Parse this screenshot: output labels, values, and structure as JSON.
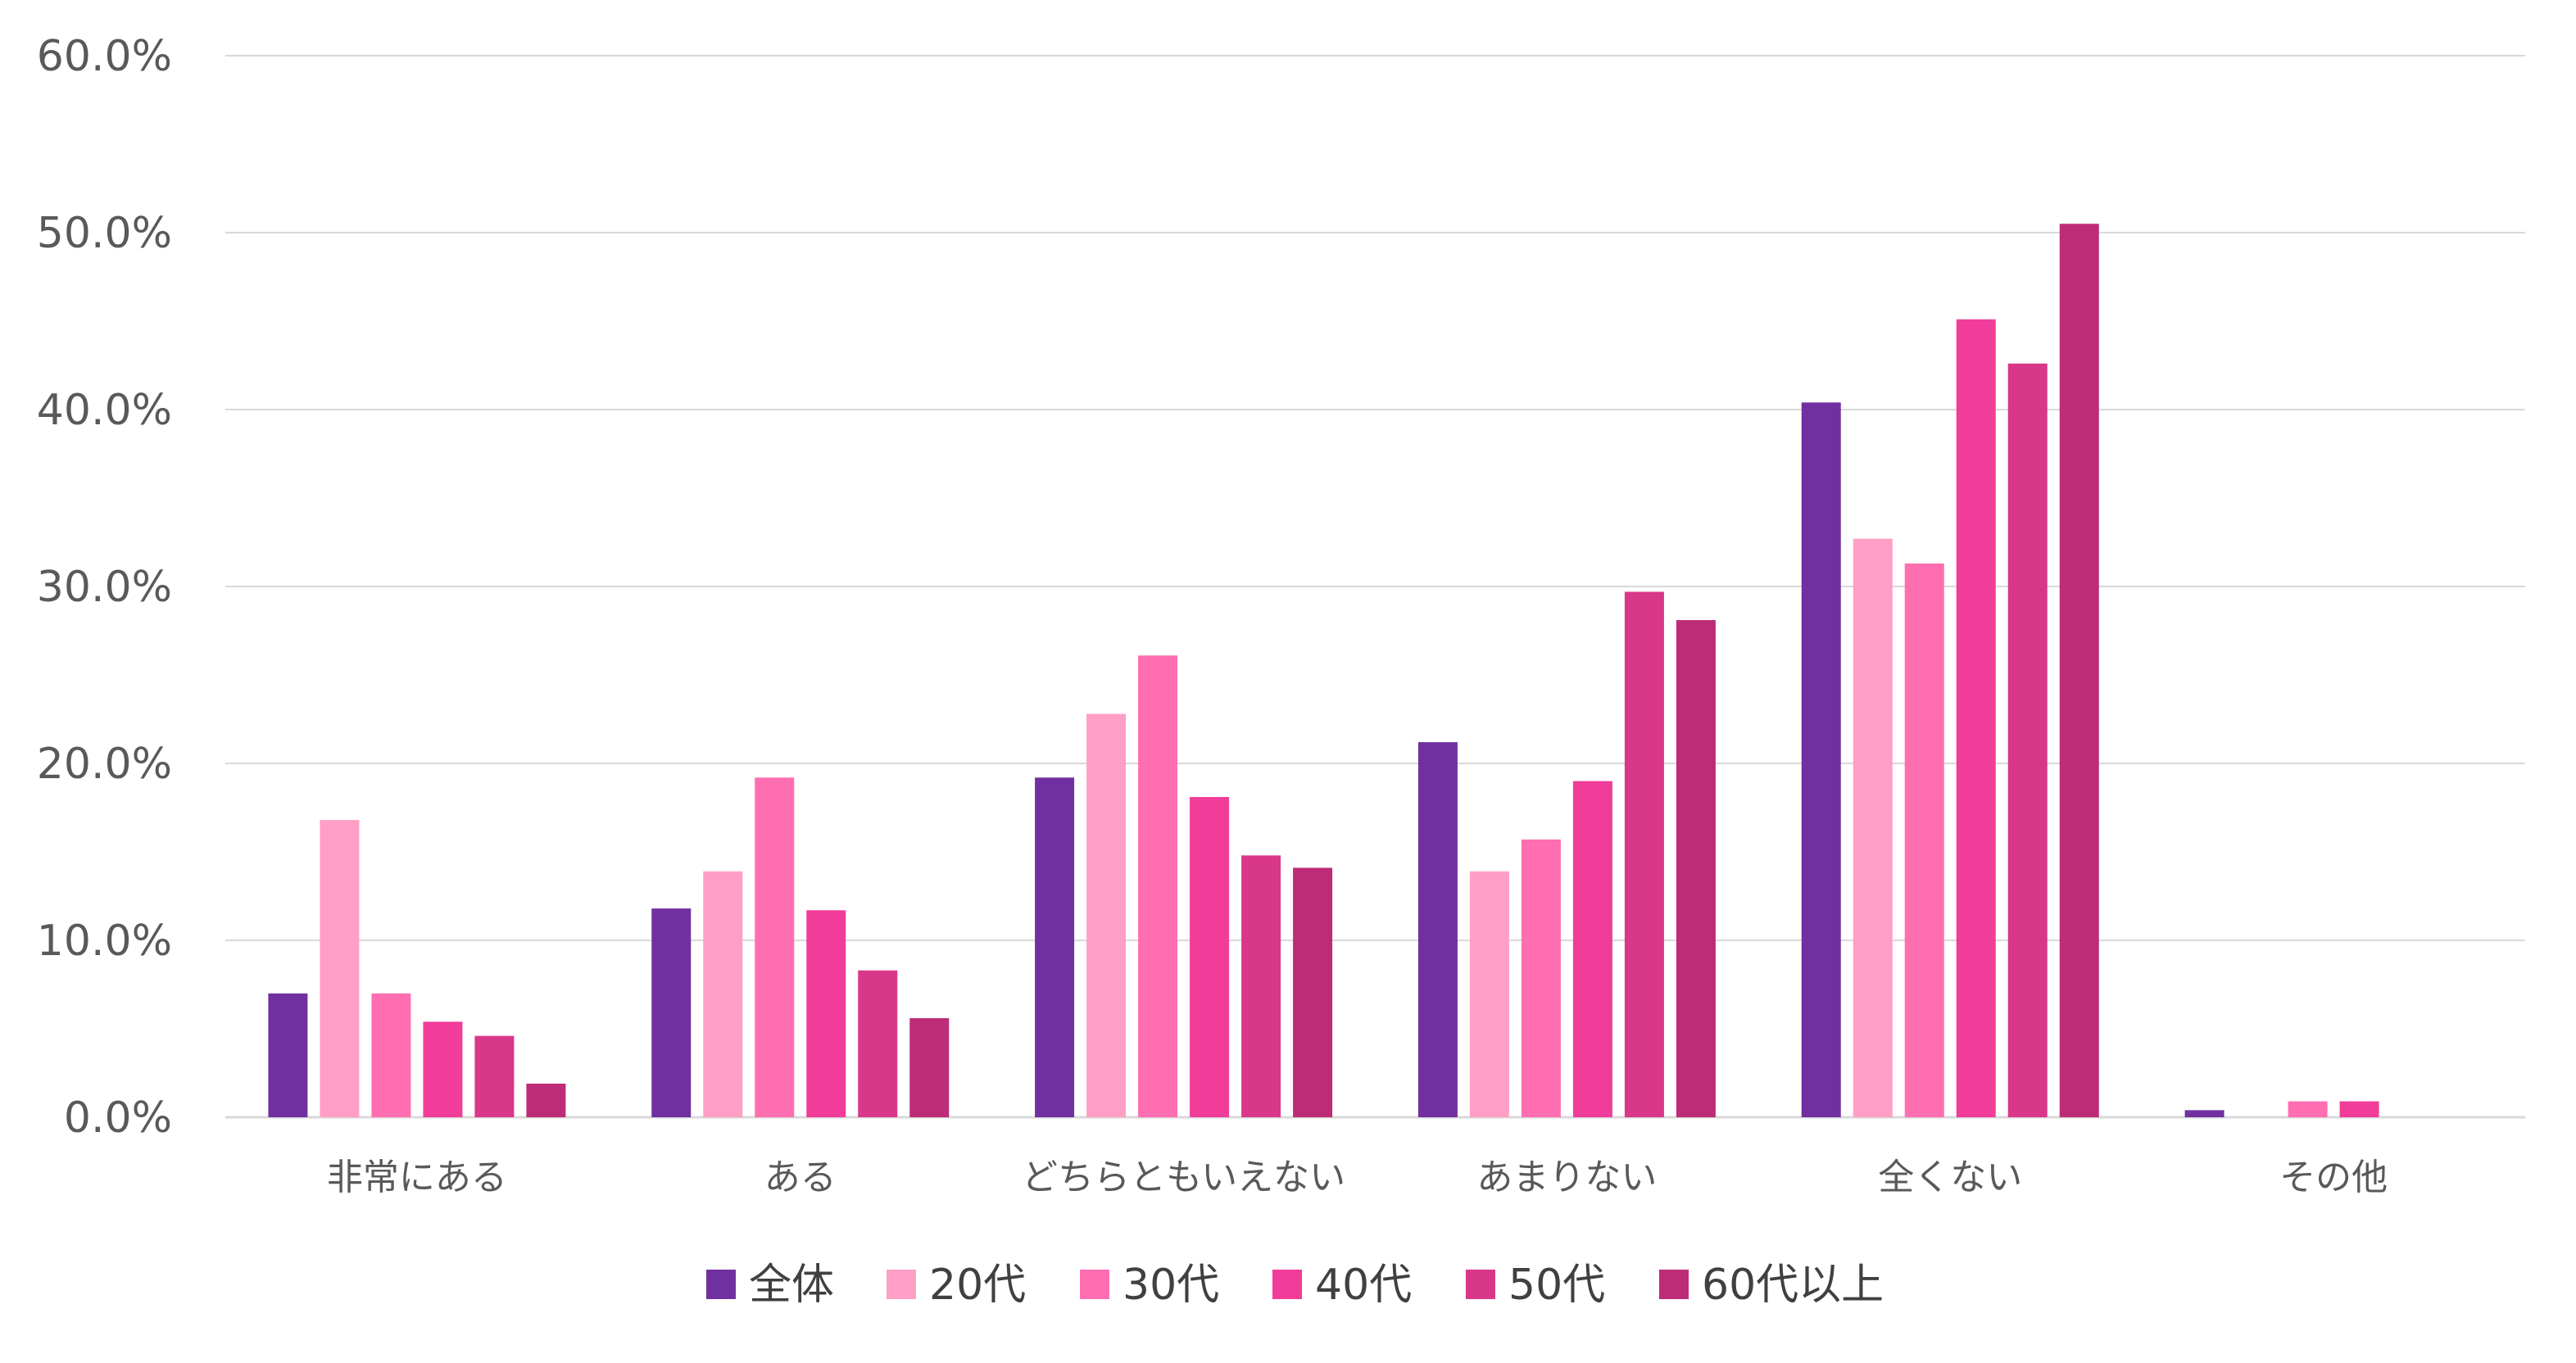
{
  "chart_data": {
    "type": "bar",
    "title": "",
    "xlabel": "",
    "ylabel": "",
    "ylim": [
      0,
      60
    ],
    "ytick_values": [
      0,
      10,
      20,
      30,
      40,
      50,
      60
    ],
    "ytick_labels": [
      "0.0%",
      "10.0%",
      "20.0%",
      "30.0%",
      "40.0%",
      "50.0%",
      "60.0%"
    ],
    "grid": true,
    "legend_position": "bottom",
    "categories": [
      "非常にある",
      "ある",
      "どちらともいえない",
      "あまりない",
      "全くない",
      "その他"
    ],
    "series": [
      {
        "name": "全体",
        "color": "#7030a0",
        "values": [
          7.0,
          11.8,
          19.2,
          21.2,
          40.4,
          0.4
        ]
      },
      {
        "name": "20代",
        "color": "#ff9fc6",
        "values": [
          16.8,
          13.9,
          22.8,
          13.9,
          32.7,
          0.0
        ]
      },
      {
        "name": "30代",
        "color": "#ff6eb0",
        "values": [
          7.0,
          19.2,
          26.1,
          15.7,
          31.3,
          0.9
        ]
      },
      {
        "name": "40代",
        "color": "#f13c9a",
        "values": [
          5.4,
          11.7,
          18.1,
          19.0,
          45.1,
          0.9
        ]
      },
      {
        "name": "50代",
        "color": "#d9378a",
        "values": [
          4.6,
          8.3,
          14.8,
          29.7,
          42.6,
          0.0
        ]
      },
      {
        "name": "60代以上",
        "color": "#bd2c77",
        "values": [
          1.9,
          5.6,
          14.1,
          28.1,
          50.5,
          0.0
        ]
      }
    ]
  }
}
